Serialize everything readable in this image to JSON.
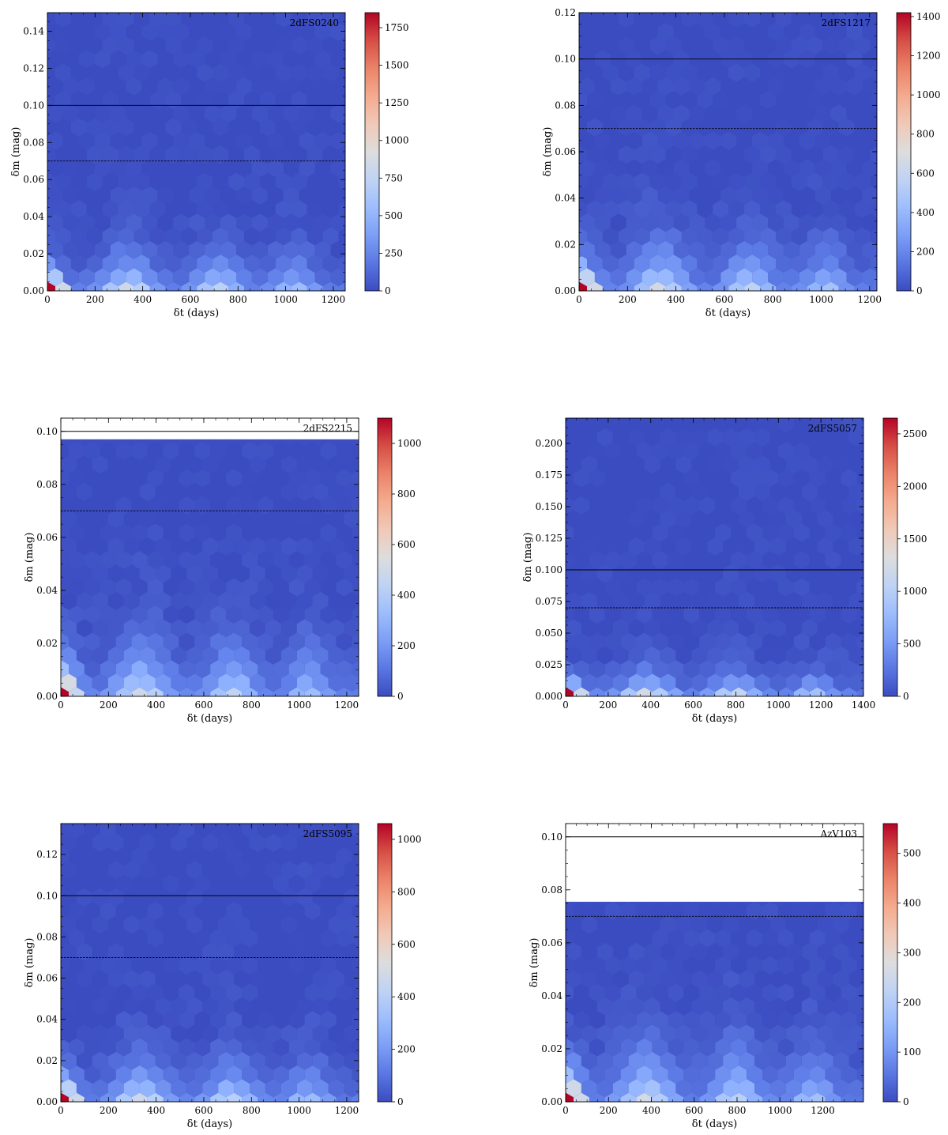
{
  "chart_data": [
    {
      "type": "heatmap",
      "name": "2dFS0240",
      "label": "2dFS0240",
      "xlabel": "δt (days)",
      "ylabel": "δm (mag)",
      "xlim": [
        0,
        1250
      ],
      "ylim": [
        0,
        0.15
      ],
      "xticks": [
        0,
        200,
        400,
        600,
        800,
        1000,
        1200
      ],
      "yticks": [
        0.0,
        0.02,
        0.04,
        0.06,
        0.08,
        0.1,
        0.12,
        0.14
      ],
      "clim": [
        0,
        1850
      ],
      "cticks": [
        0,
        250,
        500,
        750,
        1000,
        1250,
        1500,
        1750
      ],
      "colormap": "coolwarm",
      "data_top": 0.15,
      "thresholds": [
        {
          "value": 0.1,
          "style": "solid"
        },
        {
          "value": 0.07,
          "style": "dashed"
        }
      ]
    },
    {
      "type": "heatmap",
      "name": "2dFS1217",
      "label": "2dFS1217",
      "xlabel": "δt (days)",
      "ylabel": "δm (mag)",
      "xlim": [
        0,
        1230
      ],
      "ylim": [
        0,
        0.12
      ],
      "xticks": [
        0,
        200,
        400,
        600,
        800,
        1000,
        1200
      ],
      "yticks": [
        0.0,
        0.02,
        0.04,
        0.06,
        0.08,
        0.1,
        0.12
      ],
      "clim": [
        0,
        1420
      ],
      "cticks": [
        0,
        200,
        400,
        600,
        800,
        1000,
        1200,
        1400
      ],
      "colormap": "coolwarm",
      "data_top": 0.12,
      "thresholds": [
        {
          "value": 0.1,
          "style": "solid"
        },
        {
          "value": 0.07,
          "style": "dashed"
        }
      ]
    },
    {
      "type": "heatmap",
      "name": "2dFS2215",
      "label": "2dFS2215",
      "xlabel": "δt (days)",
      "ylabel": "δm (mag)",
      "xlim": [
        0,
        1250
      ],
      "ylim": [
        0,
        0.105
      ],
      "xticks": [
        0,
        200,
        400,
        600,
        800,
        1000,
        1200
      ],
      "yticks": [
        0.0,
        0.02,
        0.04,
        0.06,
        0.08,
        0.1
      ],
      "clim": [
        0,
        1100
      ],
      "cticks": [
        0,
        200,
        400,
        600,
        800,
        1000
      ],
      "colormap": "coolwarm",
      "data_top": 0.097,
      "thresholds": [
        {
          "value": 0.1,
          "style": "solid"
        },
        {
          "value": 0.07,
          "style": "dashed"
        }
      ]
    },
    {
      "type": "heatmap",
      "name": "2dFS5057",
      "label": "2dFS5057",
      "xlabel": "δt (days)",
      "ylabel": "δm (mag)",
      "xlim": [
        0,
        1400
      ],
      "ylim": [
        0,
        0.22
      ],
      "xticks": [
        0,
        200,
        400,
        600,
        800,
        1000,
        1200,
        1400
      ],
      "yticks": [
        0.0,
        0.025,
        0.05,
        0.075,
        0.1,
        0.125,
        0.15,
        0.175,
        0.2
      ],
      "ytick_decimals": 3,
      "clim": [
        0,
        2650
      ],
      "cticks": [
        0,
        500,
        1000,
        1500,
        2000,
        2500
      ],
      "colormap": "coolwarm",
      "data_top": 0.22,
      "thresholds": [
        {
          "value": 0.1,
          "style": "solid"
        },
        {
          "value": 0.07,
          "style": "dashed"
        }
      ]
    },
    {
      "type": "heatmap",
      "name": "2dFS5095",
      "label": "2dFS5095",
      "xlabel": "δt (days)",
      "ylabel": "δm (mag)",
      "xlim": [
        0,
        1250
      ],
      "ylim": [
        0,
        0.135
      ],
      "xticks": [
        0,
        200,
        400,
        600,
        800,
        1000,
        1200
      ],
      "yticks": [
        0.0,
        0.02,
        0.04,
        0.06,
        0.08,
        0.1,
        0.12
      ],
      "clim": [
        0,
        1060
      ],
      "cticks": [
        0,
        200,
        400,
        600,
        800,
        1000
      ],
      "colormap": "coolwarm",
      "data_top": 0.135,
      "thresholds": [
        {
          "value": 0.1,
          "style": "solid"
        },
        {
          "value": 0.07,
          "style": "dashed"
        }
      ]
    },
    {
      "type": "heatmap",
      "name": "AzV103",
      "label": "AzV103",
      "xlabel": "δt (days)",
      "ylabel": "δm (mag)",
      "xlim": [
        0,
        1390
      ],
      "ylim": [
        0,
        0.105
      ],
      "xticks": [
        0,
        200,
        400,
        600,
        800,
        1000,
        1200
      ],
      "yticks": [
        0.0,
        0.02,
        0.04,
        0.06,
        0.08,
        0.1
      ],
      "clim": [
        0,
        560
      ],
      "cticks": [
        0,
        100,
        200,
        300,
        400,
        500
      ],
      "colormap": "coolwarm",
      "data_top": 0.0755,
      "thresholds": [
        {
          "value": 0.1,
          "style": "solid"
        },
        {
          "value": 0.07,
          "style": "dashed"
        }
      ]
    }
  ]
}
